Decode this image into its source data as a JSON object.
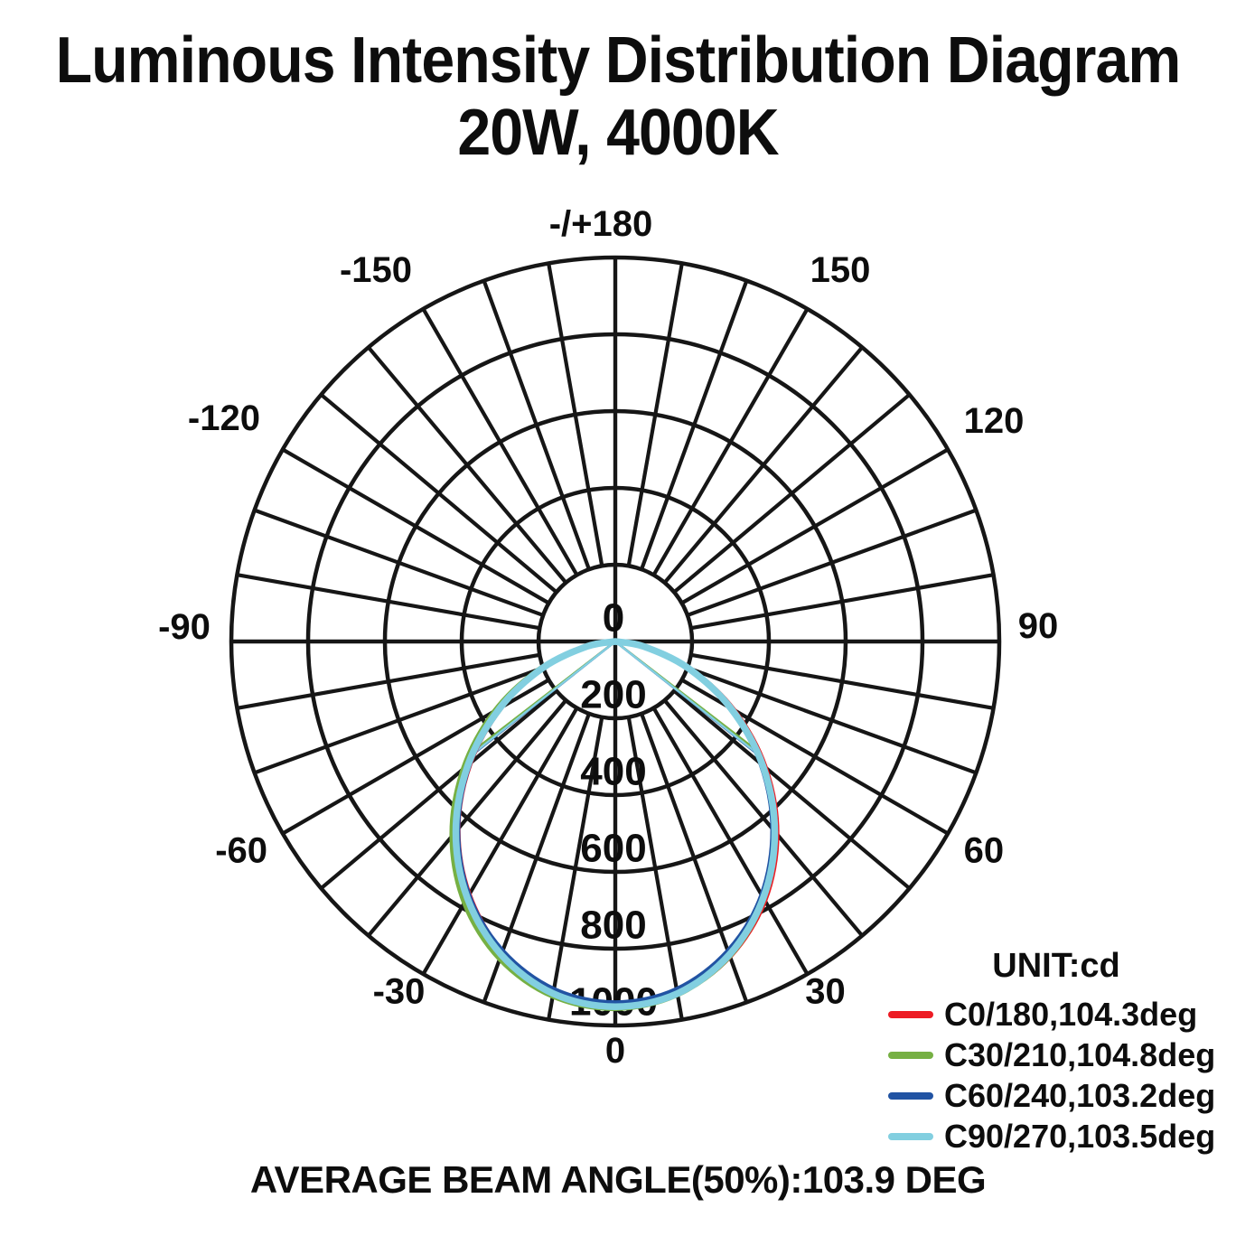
{
  "title": {
    "line1": "Luminous Intensity Distribution Diagram",
    "line2": "20W, 4000K"
  },
  "polar": {
    "unit": "cd",
    "max_value": 1000,
    "ring_step": 200,
    "spoke_step_deg": 10,
    "angle_labels": [
      {
        "label": "-/+180",
        "angle": 180
      },
      {
        "label": "-150",
        "angle": -150
      },
      {
        "label": "150",
        "angle": 150
      },
      {
        "label": "-120",
        "angle": -120
      },
      {
        "label": "120",
        "angle": 120
      },
      {
        "label": "-90",
        "angle": -90
      },
      {
        "label": "90",
        "angle": 90
      },
      {
        "label": "-60",
        "angle": -60
      },
      {
        "label": "60",
        "angle": 60
      },
      {
        "label": "-30",
        "angle": -30
      },
      {
        "label": "30",
        "angle": 30
      },
      {
        "label": "0",
        "angle": 0
      }
    ],
    "radial_labels": [
      "0",
      "200",
      "400",
      "600",
      "800",
      "1000"
    ]
  },
  "chart_data": {
    "type": "line",
    "subtype": "polar-luminous-intensity",
    "title": "Luminous Intensity Distribution Diagram 20W, 4000K",
    "unit": "cd",
    "radial_axis": {
      "min": 0,
      "max": 1000,
      "tick_step": 200,
      "tick_labels": [
        0,
        200,
        400,
        600,
        800,
        1000
      ]
    },
    "angle_axis": {
      "min_deg": -180,
      "max_deg": 180,
      "label_step_deg": 30,
      "grid_step_deg": 10,
      "zero_position": "bottom"
    },
    "angles_deg": [
      -90,
      -80,
      -70,
      -60,
      -50,
      -40,
      -30,
      -20,
      -10,
      0,
      10,
      20,
      30,
      40,
      50,
      60,
      70,
      80,
      90
    ],
    "series": [
      {
        "name": "C0/180",
        "beam_angle_deg": 104.3,
        "color": "#ed1c24",
        "values": [
          0,
          74,
          198,
          342,
          493,
          637,
          761,
          860,
          924,
          948,
          932,
          873,
          779,
          655,
          510,
          356,
          206,
          78,
          0
        ]
      },
      {
        "name": "C30/210",
        "beam_angle_deg": 104.8,
        "color": "#76b043",
        "values": [
          0,
          80,
          211,
          363,
          517,
          662,
          786,
          880,
          938,
          956,
          934,
          872,
          774,
          649,
          505,
          353,
          205,
          78,
          0
        ]
      },
      {
        "name": "C60/240",
        "beam_angle_deg": 103.2,
        "color": "#2153a3",
        "values": [
          0,
          73,
          198,
          343,
          495,
          638,
          763,
          858,
          920,
          941,
          920,
          858,
          763,
          638,
          495,
          343,
          198,
          73,
          0
        ]
      },
      {
        "name": "C90/270",
        "beam_angle_deg": 103.5,
        "color": "#82cfe0",
        "values": [
          0,
          75,
          201,
          347,
          501,
          646,
          771,
          868,
          931,
          951,
          931,
          868,
          771,
          646,
          501,
          347,
          201,
          75,
          0
        ]
      }
    ],
    "average_beam_angle_50pct_deg": 103.9
  },
  "legend": {
    "title": "UNIT:cd",
    "items": [
      {
        "label": "C0/180,104.3deg",
        "color": "#ed1c24"
      },
      {
        "label": "C30/210,104.8deg",
        "color": "#76b043"
      },
      {
        "label": "C60/240,103.2deg",
        "color": "#2153a3"
      },
      {
        "label": "C90/270,103.5deg",
        "color": "#82cfe0"
      }
    ]
  },
  "caption": "AVERAGE BEAM ANGLE(50%):103.9 DEG"
}
